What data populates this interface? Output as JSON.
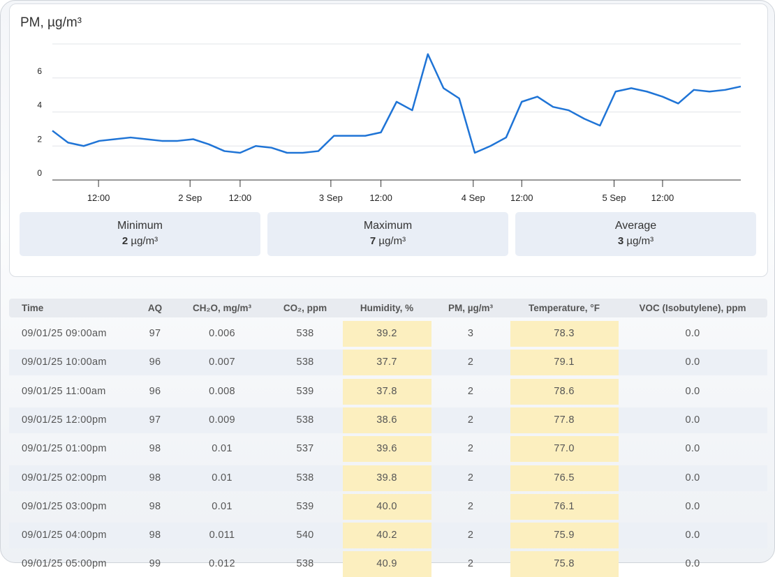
{
  "chart_data": {
    "type": "line",
    "title": "PM, µg/m³",
    "x": [
      0,
      1,
      2,
      3,
      4,
      5,
      6,
      7,
      8,
      9,
      10,
      11,
      12,
      13,
      14,
      15,
      16,
      17,
      18,
      19,
      20,
      21,
      22,
      23,
      24,
      25,
      26,
      27,
      28,
      29,
      30,
      31,
      32,
      33,
      34,
      35,
      36,
      37,
      38,
      39,
      40,
      41,
      42,
      43,
      44
    ],
    "series": [
      {
        "name": "PM",
        "color": "#1f74d6",
        "values": [
          2.9,
          2.2,
          2.0,
          2.3,
          2.4,
          2.5,
          2.4,
          2.3,
          2.3,
          2.4,
          2.1,
          1.7,
          1.6,
          2.0,
          1.9,
          1.6,
          1.6,
          1.7,
          2.6,
          2.6,
          2.6,
          2.8,
          4.6,
          4.1,
          7.4,
          5.4,
          4.8,
          1.6,
          2.0,
          2.5,
          4.6,
          4.9,
          4.3,
          4.1,
          3.6,
          3.2,
          5.2,
          5.4,
          5.2,
          4.9,
          4.5,
          5.3,
          5.2,
          5.3,
          5.5
        ]
      }
    ],
    "xlim": [
      0,
      44
    ],
    "xticks": [
      {
        "value": 2.95,
        "label": "12:00"
      },
      {
        "value": 8.8,
        "label": "2 Sep"
      },
      {
        "value": 12,
        "label": "12:00"
      },
      {
        "value": 17.8,
        "label": "3 Sep"
      },
      {
        "value": 21,
        "label": "12:00"
      },
      {
        "value": 26.9,
        "label": "4 Sep"
      },
      {
        "value": 30,
        "label": "12:00"
      },
      {
        "value": 35.9,
        "label": "5 Sep"
      },
      {
        "value": 39,
        "label": "12:00"
      }
    ],
    "ylim": [
      0,
      8
    ],
    "yticks": [
      0,
      2,
      4,
      6
    ],
    "grid": true
  },
  "stats": [
    {
      "label": "Minimum",
      "value": 2,
      "unit": "µg/m³"
    },
    {
      "label": "Maximum",
      "value": 7,
      "unit": "µg/m³"
    },
    {
      "label": "Average",
      "value": 3,
      "unit": "µg/m³"
    }
  ],
  "table": {
    "columns": [
      "Time",
      "AQ",
      "CH₂O, mg/m³",
      "CO₂, ppm",
      "Humidity, %",
      "PM, µg/m³",
      "Temperature, °F",
      "VOC (Isobutylene), ppm"
    ],
    "rows": [
      [
        "09/01/25 09:00am",
        "97",
        "0.006",
        "538",
        "39.2",
        "3",
        "78.3",
        "0.0"
      ],
      [
        "09/01/25 10:00am",
        "96",
        "0.007",
        "538",
        "37.7",
        "2",
        "79.1",
        "0.0"
      ],
      [
        "09/01/25 11:00am",
        "96",
        "0.008",
        "539",
        "37.8",
        "2",
        "78.6",
        "0.0"
      ],
      [
        "09/01/25 12:00pm",
        "97",
        "0.009",
        "538",
        "38.6",
        "2",
        "77.8",
        "0.0"
      ],
      [
        "09/01/25 01:00pm",
        "98",
        "0.01",
        "537",
        "39.6",
        "2",
        "77.0",
        "0.0"
      ],
      [
        "09/01/25 02:00pm",
        "98",
        "0.01",
        "538",
        "39.8",
        "2",
        "76.5",
        "0.0"
      ],
      [
        "09/01/25 03:00pm",
        "98",
        "0.01",
        "539",
        "40.0",
        "2",
        "76.1",
        "0.0"
      ],
      [
        "09/01/25 04:00pm",
        "98",
        "0.011",
        "540",
        "40.2",
        "2",
        "75.9",
        "0.0"
      ],
      [
        "09/01/25 05:00pm",
        "99",
        "0.012",
        "538",
        "40.9",
        "2",
        "75.8",
        "0.0"
      ]
    ]
  }
}
